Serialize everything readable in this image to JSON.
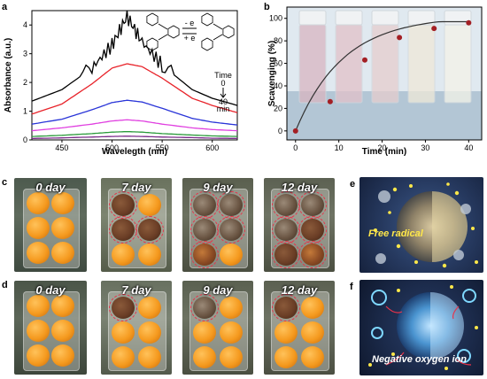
{
  "panel_labels": {
    "a": "a",
    "b": "b",
    "c": "c",
    "d": "d",
    "e": "e",
    "f": "f"
  },
  "panel_a": {
    "ylabel": "Absorbance (a.u.)",
    "xlabel": "Wavelegth (nm)",
    "x_ticks": [
      "450",
      "500",
      "550",
      "600"
    ],
    "y_ticks": [
      "0",
      "1",
      "2",
      "3",
      "4"
    ],
    "time_label": "Time",
    "time_start": "0",
    "time_end": "40",
    "time_unit": "min",
    "reaction_fwd": "- e",
    "reaction_rev": "+ e"
  },
  "panel_b": {
    "ylabel": "Scavenging (%)",
    "xlabel": "Time (min)",
    "x_ticks": [
      "0",
      "10",
      "20",
      "30",
      "40"
    ],
    "y_ticks": [
      "0",
      "20",
      "40",
      "60",
      "80",
      "100"
    ]
  },
  "chart_data": [
    {
      "type": "line",
      "panel": "a",
      "xlabel": "Wavelegth (nm)",
      "ylabel": "Absorbance (a.u.)",
      "xlim": [
        420,
        625
      ],
      "ylim": [
        0,
        4.5
      ],
      "series": [
        {
          "color": "#000000",
          "x": [
            420,
            450,
            480,
            500,
            515,
            530,
            550,
            580,
            600,
            625
          ],
          "y": [
            1.35,
            1.75,
            2.5,
            3.3,
            4.3,
            3.4,
            2.6,
            1.75,
            1.45,
            1.2
          ]
        },
        {
          "color": "#e8232a",
          "x": [
            420,
            450,
            480,
            500,
            515,
            530,
            550,
            580,
            600,
            625
          ],
          "y": [
            0.9,
            1.25,
            1.95,
            2.5,
            2.65,
            2.55,
            2.15,
            1.45,
            1.2,
            0.95
          ]
        },
        {
          "color": "#2a35d8",
          "x": [
            420,
            450,
            480,
            500,
            515,
            530,
            550,
            580,
            600,
            625
          ],
          "y": [
            0.55,
            0.72,
            1.05,
            1.3,
            1.38,
            1.32,
            1.1,
            0.75,
            0.62,
            0.52
          ]
        },
        {
          "color": "#e040e0",
          "x": [
            420,
            450,
            480,
            500,
            515,
            530,
            550,
            580,
            600,
            625
          ],
          "y": [
            0.32,
            0.42,
            0.55,
            0.66,
            0.7,
            0.66,
            0.55,
            0.42,
            0.36,
            0.32
          ]
        },
        {
          "color": "#2a9a3a",
          "x": [
            420,
            450,
            480,
            500,
            515,
            530,
            550,
            580,
            600,
            625
          ],
          "y": [
            0.12,
            0.16,
            0.22,
            0.27,
            0.29,
            0.27,
            0.22,
            0.17,
            0.14,
            0.12
          ]
        },
        {
          "color": "#7a2a8a",
          "x": [
            420,
            450,
            480,
            500,
            515,
            530,
            550,
            580,
            600,
            625
          ],
          "y": [
            0.05,
            0.07,
            0.1,
            0.12,
            0.13,
            0.12,
            0.1,
            0.08,
            0.06,
            0.05
          ]
        }
      ]
    },
    {
      "type": "line",
      "panel": "b",
      "xlabel": "Time (min)",
      "ylabel": "Scavenging (%)",
      "xlim": [
        -2,
        43
      ],
      "ylim": [
        -8,
        110
      ],
      "x": [
        0,
        8,
        16,
        24,
        32,
        40
      ],
      "y": [
        0,
        26,
        63,
        83,
        91,
        96
      ]
    }
  ],
  "photo_rows": {
    "c": [
      "0 day",
      "7 day",
      "9 day",
      "12 day"
    ],
    "d": [
      "0 day",
      "7 day",
      "9 day",
      "12 day"
    ]
  },
  "panel_e": {
    "text": "Free radical"
  },
  "panel_f": {
    "text": "Negative oxygen ion"
  }
}
